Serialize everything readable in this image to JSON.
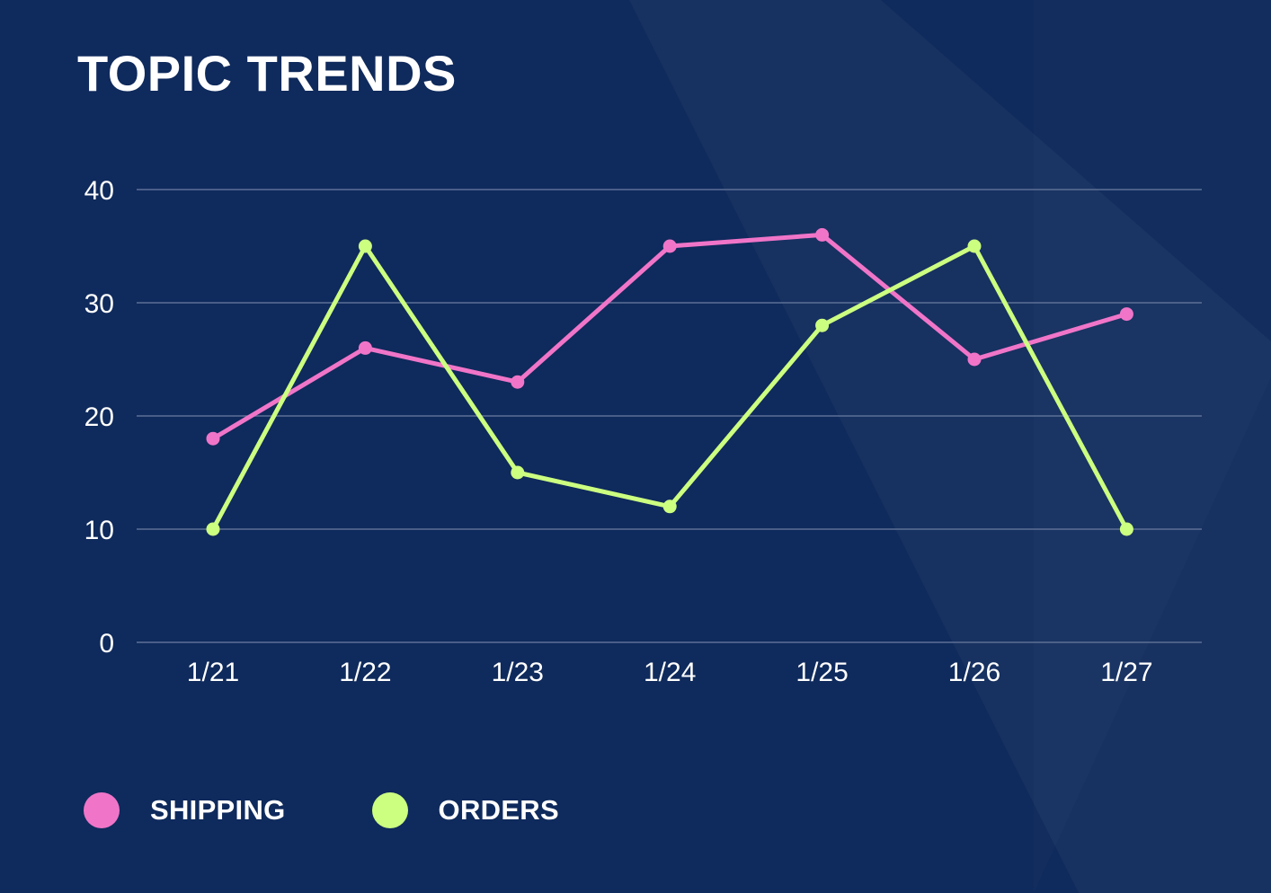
{
  "chart_data": {
    "type": "line",
    "title": "TOPIC TRENDS",
    "categories": [
      "1/21",
      "1/22",
      "1/23",
      "1/24",
      "1/25",
      "1/26",
      "1/27"
    ],
    "ylim": [
      0,
      40
    ],
    "yticks": [
      0,
      10,
      20,
      30,
      40
    ],
    "ytick_labels": [
      "0",
      "10",
      "20",
      "30",
      "40"
    ],
    "grid": true,
    "legend_position": "bottom-left",
    "series": [
      {
        "name": "SHIPPING",
        "color": "#f075c8",
        "values": [
          18,
          26,
          23,
          35,
          36,
          25,
          29
        ]
      },
      {
        "name": "ORDERS",
        "color": "#ccff80",
        "values": [
          10,
          35,
          15,
          12,
          28,
          35,
          10
        ]
      }
    ]
  },
  "colors": {
    "background": "#0f2a5c",
    "grid": "#5d7096",
    "text": "#ffffff"
  }
}
